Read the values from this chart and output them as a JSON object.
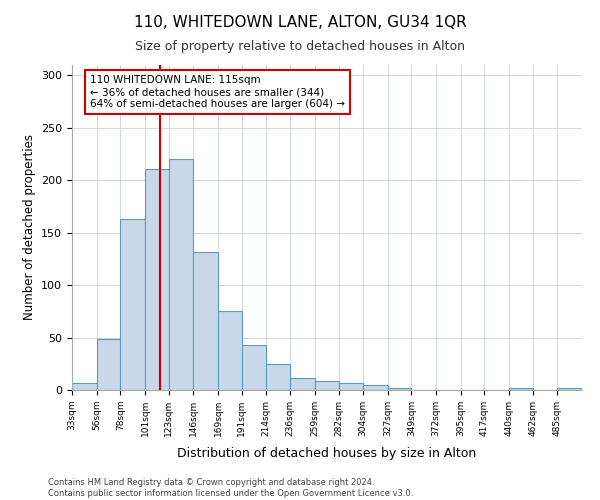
{
  "title": "110, WHITEDOWN LANE, ALTON, GU34 1QR",
  "subtitle": "Size of property relative to detached houses in Alton",
  "xlabel": "Distribution of detached houses by size in Alton",
  "ylabel": "Number of detached properties",
  "bins": [
    "33sqm",
    "56sqm",
    "78sqm",
    "101sqm",
    "123sqm",
    "146sqm",
    "169sqm",
    "191sqm",
    "214sqm",
    "236sqm",
    "259sqm",
    "282sqm",
    "304sqm",
    "327sqm",
    "349sqm",
    "372sqm",
    "395sqm",
    "417sqm",
    "440sqm",
    "462sqm",
    "485sqm"
  ],
  "bin_edges": [
    33,
    56,
    78,
    101,
    123,
    146,
    169,
    191,
    214,
    236,
    259,
    282,
    304,
    327,
    349,
    372,
    395,
    417,
    440,
    462,
    485
  ],
  "values": [
    7,
    49,
    163,
    211,
    220,
    132,
    75,
    43,
    25,
    11,
    9,
    7,
    5,
    2,
    0,
    0,
    0,
    0,
    2,
    0,
    2
  ],
  "bar_color": "#c8d8e8",
  "bar_edge_color": "#5a9aba",
  "vline_x": 115,
  "vline_color": "#cc0000",
  "annotation_text": "110 WHITEDOWN LANE: 115sqm\n← 36% of detached houses are smaller (344)\n64% of semi-detached houses are larger (604) →",
  "annotation_box_color": "#ffffff",
  "annotation_box_edge_color": "#cc0000",
  "ylim": [
    0,
    310
  ],
  "yticks": [
    0,
    50,
    100,
    150,
    200,
    250,
    300
  ],
  "footer_line1": "Contains HM Land Registry data © Crown copyright and database right 2024.",
  "footer_line2": "Contains public sector information licensed under the Open Government Licence v3.0.",
  "background_color": "#ffffff",
  "grid_color": "#d0d8e0"
}
